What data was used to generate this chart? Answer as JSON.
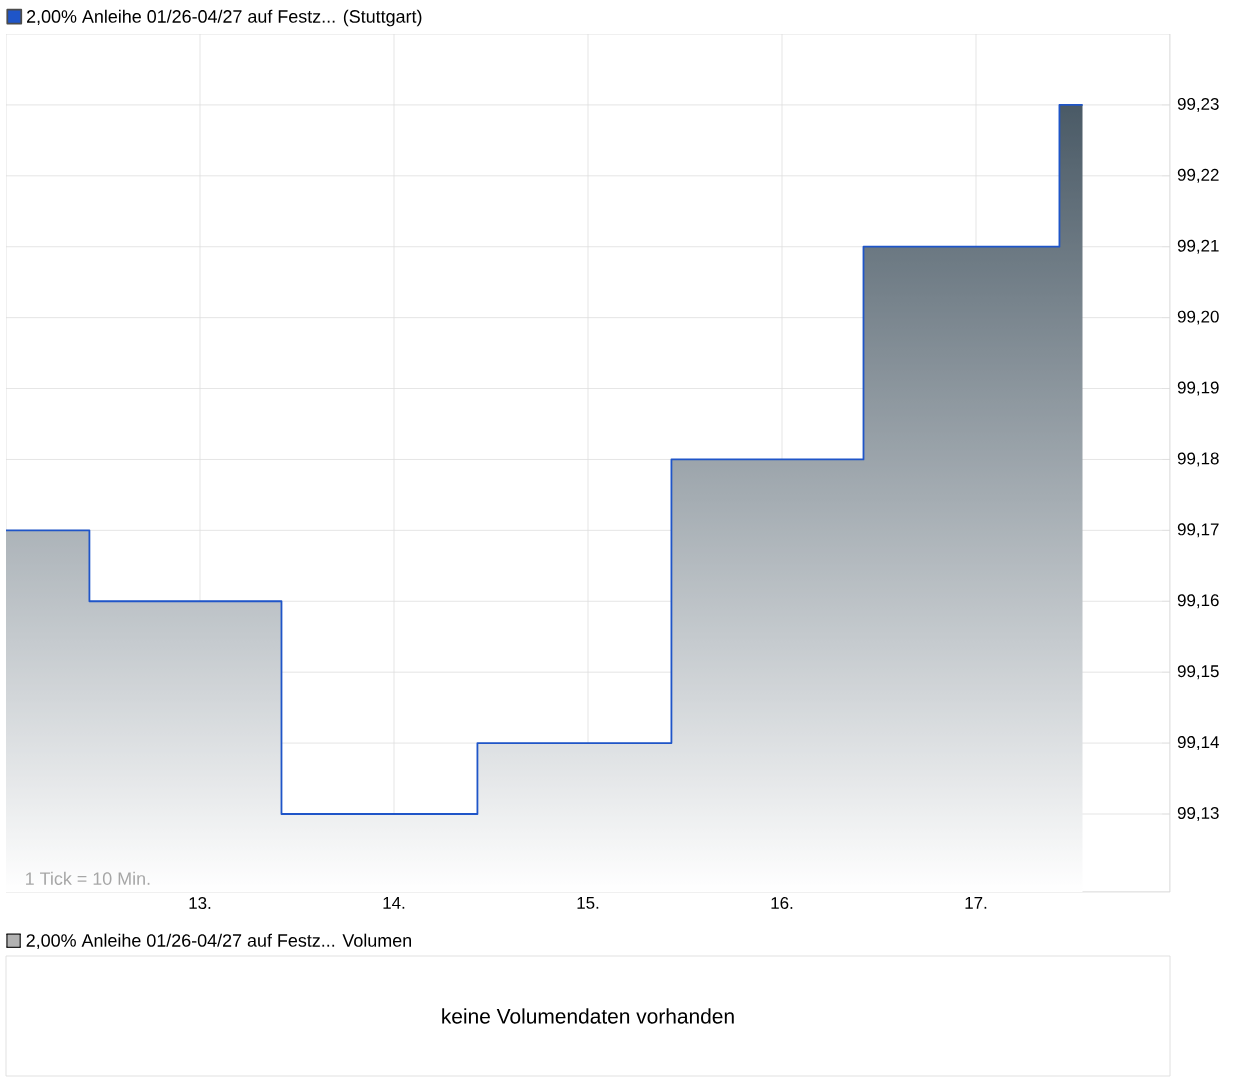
{
  "chart_data": [
    {
      "type": "step",
      "legend": "top left",
      "grid": true,
      "series": [
        {
          "name": "2,00% Anleihe 01/26-04/27 auf Festz... (Stuttgart)",
          "color": "#1f55c8",
          "x": [
            12.0,
            12.43,
            13.42,
            14.43,
            15.43,
            16.42,
            17.43,
            17.55
          ],
          "values": [
            99.17,
            99.16,
            99.13,
            99.14,
            99.18,
            99.21,
            99.23,
            99.23
          ]
        }
      ],
      "xlim": [
        12.0,
        18.0
      ],
      "xticks": [
        {
          "value": 13,
          "label": "13."
        },
        {
          "value": 14,
          "label": "14."
        },
        {
          "value": 15,
          "label": "15."
        },
        {
          "value": 16,
          "label": "16."
        },
        {
          "value": 17,
          "label": "17."
        }
      ],
      "ylim": [
        99.119,
        99.24
      ],
      "yticks": [
        {
          "value": 99.13,
          "label": "99,13"
        },
        {
          "value": 99.14,
          "label": "99,14"
        },
        {
          "value": 99.15,
          "label": "99,15"
        },
        {
          "value": 99.16,
          "label": "99,16"
        },
        {
          "value": 99.17,
          "label": "99,17"
        },
        {
          "value": 99.18,
          "label": "99,18"
        },
        {
          "value": 99.19,
          "label": "99,19"
        },
        {
          "value": 99.2,
          "label": "99,20"
        },
        {
          "value": 99.21,
          "label": "99,21"
        },
        {
          "value": 99.22,
          "label": "99,22"
        },
        {
          "value": 99.23,
          "label": "99,23"
        }
      ],
      "annotations": [
        "1 Tick = 10 Min."
      ]
    },
    {
      "type": "other",
      "title": "2,00% Anleihe 01/26-04/27 auf Festz... Volumen",
      "annotations": [
        "keine Volumendaten vorhanden"
      ]
    }
  ]
}
